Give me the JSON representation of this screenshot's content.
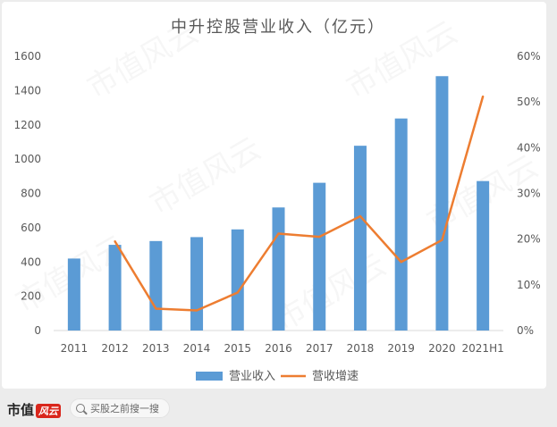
{
  "chart_data": {
    "type": "bar",
    "title": "中升控股营业收入（亿元）",
    "categories": [
      "2011",
      "2012",
      "2013",
      "2014",
      "2015",
      "2016",
      "2017",
      "2018",
      "2019",
      "2020",
      "2021H1"
    ],
    "series": [
      {
        "name": "营业收入",
        "axis": "left",
        "type": "bar",
        "values": [
          420,
          500,
          522,
          545,
          590,
          718,
          862,
          1078,
          1237,
          1484,
          872
        ]
      },
      {
        "name": "营收增速",
        "axis": "right",
        "type": "line",
        "values": [
          null,
          0.195,
          0.048,
          0.044,
          0.083,
          0.212,
          0.205,
          0.25,
          0.15,
          0.198,
          0.512
        ]
      }
    ],
    "y_left": {
      "ylim": [
        0,
        1600
      ],
      "ticks": [
        "0",
        "200",
        "400",
        "600",
        "800",
        "1000",
        "1200",
        "1400",
        "1600"
      ]
    },
    "y_right": {
      "ylim": [
        0,
        0.6
      ],
      "ticks": [
        "0%",
        "10%",
        "20%",
        "30%",
        "40%",
        "50%",
        "60%"
      ]
    },
    "legend_position": "bottom",
    "grid": false,
    "colors": {
      "bar": "#5b9bd5",
      "line": "#ed7d31"
    }
  },
  "footer": {
    "brand": "市值",
    "brand_badge": "风云",
    "search_placeholder": "买股之前搜一搜"
  },
  "watermark_text": "市值风云"
}
